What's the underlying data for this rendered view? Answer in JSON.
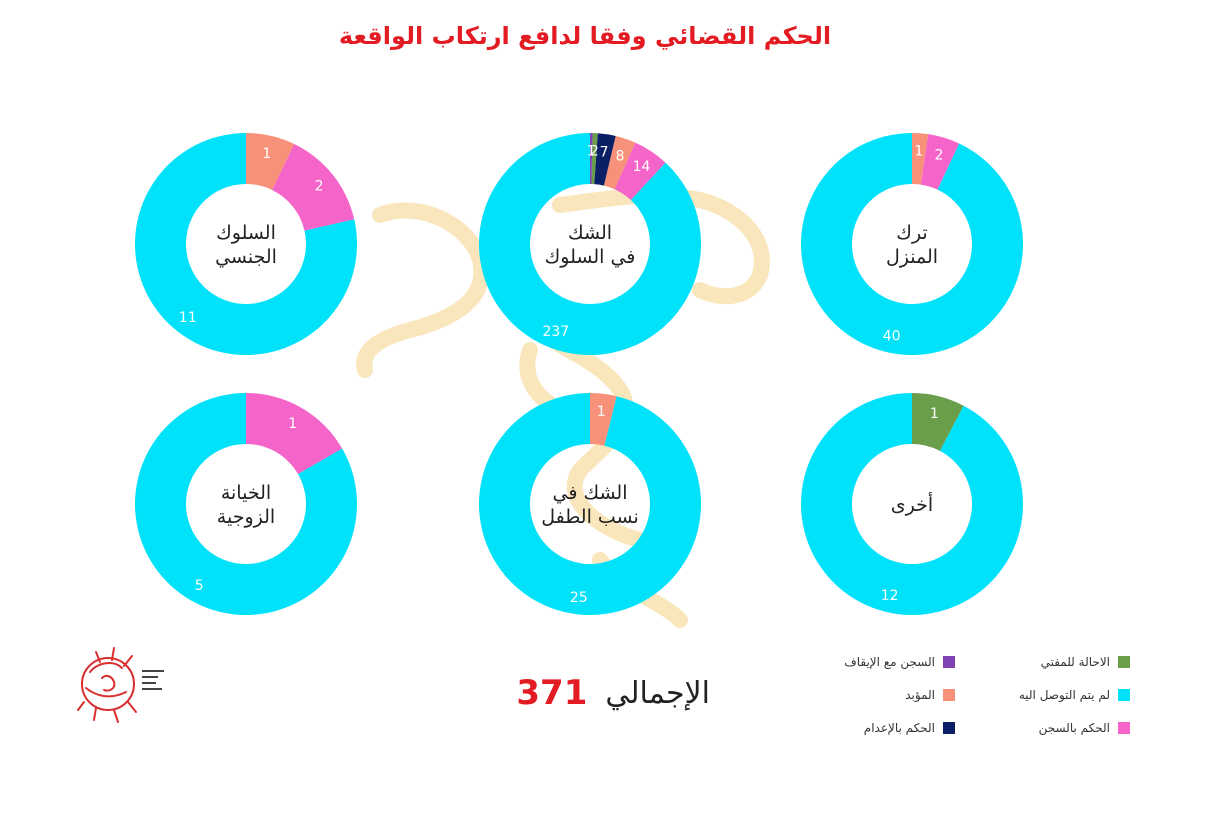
{
  "title": "الحكم القضائي وفقا لدافع ارتكاب الواقعة",
  "colors": {
    "green": "#6a9e4a",
    "cyan": "#00e1fa",
    "pink": "#f564c8",
    "purple": "#7f43b4",
    "salmon": "#f7917a",
    "navy": "#0b1f66"
  },
  "chart_data": {
    "type": "pie",
    "series_legend": [
      {
        "name": "الاحالة للمفتي",
        "color": "#6a9e4a"
      },
      {
        "name": "لم يتم التوصل اليه",
        "color": "#00e1fa"
      },
      {
        "name": "الحكم بالسجن",
        "color": "#f564c8"
      },
      {
        "name": "السجن مع الإيقاف",
        "color": "#7f43b4"
      },
      {
        "name": "المؤبد",
        "color": "#f7917a"
      },
      {
        "name": "الحكم بالإعدام",
        "color": "#0b1f66"
      }
    ],
    "charts": [
      {
        "label_lines": [
          "السلوك",
          "الجنسي"
        ],
        "slices": [
          {
            "series": "لم يتم التوصل اليه",
            "value": 11,
            "color": "#00e1fa"
          },
          {
            "series": "الحكم بالسجن",
            "value": 2,
            "color": "#f564c8"
          },
          {
            "series": "المؤبد",
            "value": 1,
            "color": "#f7917a"
          }
        ]
      },
      {
        "label_lines": [
          "الشك",
          "في السلوك"
        ],
        "slices": [
          {
            "series": "لم يتم التوصل اليه",
            "value": 237,
            "color": "#00e1fa"
          },
          {
            "series": "الحكم بالسجن",
            "value": 14,
            "color": "#f564c8"
          },
          {
            "series": "المؤبد",
            "value": 8,
            "color": "#f7917a"
          },
          {
            "series": "الحكم بالإعدام",
            "value": 7,
            "color": "#0b1f66"
          },
          {
            "series": "الاحالة للمفتي",
            "value": 2,
            "color": "#6a9e4a"
          },
          {
            "series": "السجن مع الإيقاف",
            "value": 1,
            "color": "#7f43b4"
          }
        ]
      },
      {
        "label_lines": [
          "ترك",
          "المنزل"
        ],
        "slices": [
          {
            "series": "لم يتم التوصل اليه",
            "value": 40,
            "color": "#00e1fa"
          },
          {
            "series": "الحكم بالسجن",
            "value": 2,
            "color": "#f564c8"
          },
          {
            "series": "المؤبد",
            "value": 1,
            "color": "#f7917a"
          }
        ]
      },
      {
        "label_lines": [
          "الخيانة",
          "الزوجية"
        ],
        "slices": [
          {
            "series": "لم يتم التوصل اليه",
            "value": 5,
            "color": "#00e1fa"
          },
          {
            "series": "الحكم بالسجن",
            "value": 1,
            "color": "#f564c8"
          }
        ]
      },
      {
        "label_lines": [
          "الشك في",
          "نسب الطفل"
        ],
        "slices": [
          {
            "series": "لم يتم التوصل اليه",
            "value": 25,
            "color": "#00e1fa"
          },
          {
            "series": "المؤبد",
            "value": 1,
            "color": "#f7917a"
          }
        ]
      },
      {
        "label_lines": [
          "أخرى"
        ],
        "slices": [
          {
            "series": "لم يتم التوصل اليه",
            "value": 12,
            "color": "#00e1fa"
          },
          {
            "series": "الاحالة للمفتي",
            "value": 1,
            "color": "#6a9e4a"
          }
        ]
      }
    ]
  },
  "total": {
    "label": "الإجمالي",
    "value": "371"
  },
  "legend_items": [
    {
      "label": "الاحالة للمفتي",
      "color": "#6a9e4a"
    },
    {
      "label": "السجن مع الإيقاف",
      "color": "#7f43b4"
    },
    {
      "label": "لم يتم التوصل اليه",
      "color": "#00e1fa"
    },
    {
      "label": "المؤبد",
      "color": "#f7917a"
    },
    {
      "label": "الحكم بالسجن",
      "color": "#f564c8"
    },
    {
      "label": "الحكم بالإعدام",
      "color": "#0b1f66"
    }
  ],
  "logo_icon": "egyptian-social-data-project-logo-icon"
}
